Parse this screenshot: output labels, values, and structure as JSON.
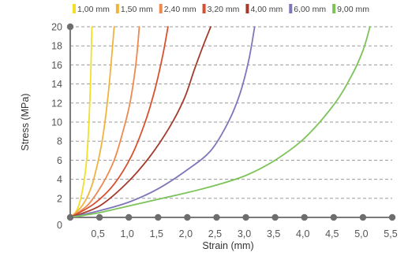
{
  "chart_data": {
    "type": "line",
    "title": "",
    "xlabel": "Strain (mm)",
    "ylabel": "Stress (MPa)",
    "xlim": [
      0,
      5.5
    ],
    "ylim": [
      0,
      20
    ],
    "x_ticks": [
      "0,5",
      "1,0",
      "1,5",
      "2,0",
      "2,5",
      "3,0",
      "3,5",
      "4,0",
      "4,5",
      "5,0",
      "5,5"
    ],
    "y_ticks": [
      "0",
      "2",
      "4",
      "6",
      "8",
      "10",
      "12",
      "14",
      "16",
      "18",
      "20"
    ],
    "grid": "horizontal-dashed",
    "legend_position": "top",
    "series": [
      {
        "name": "1,00 mm",
        "color": "#f2df2a",
        "points": [
          [
            0,
            0
          ],
          [
            0.1,
            0.6
          ],
          [
            0.18,
            2
          ],
          [
            0.24,
            4
          ],
          [
            0.28,
            6
          ],
          [
            0.32,
            10
          ],
          [
            0.35,
            15
          ],
          [
            0.37,
            20
          ]
        ]
      },
      {
        "name": "1,50 mm",
        "color": "#f0b43c",
        "points": [
          [
            0,
            0
          ],
          [
            0.2,
            1.2
          ],
          [
            0.35,
            3
          ],
          [
            0.48,
            6
          ],
          [
            0.57,
            9
          ],
          [
            0.65,
            13
          ],
          [
            0.71,
            17
          ],
          [
            0.75,
            20
          ]
        ]
      },
      {
        "name": "2,40 mm",
        "color": "#ee8a4e",
        "points": [
          [
            0,
            0
          ],
          [
            0.3,
            1.3
          ],
          [
            0.55,
            3.5
          ],
          [
            0.75,
            6
          ],
          [
            0.9,
            9
          ],
          [
            1.02,
            12
          ],
          [
            1.12,
            16
          ],
          [
            1.18,
            20
          ]
        ]
      },
      {
        "name": "3,20 mm",
        "color": "#d8502e",
        "points": [
          [
            0,
            0
          ],
          [
            0.4,
            1.4
          ],
          [
            0.75,
            3.5
          ],
          [
            1.05,
            6.5
          ],
          [
            1.28,
            10
          ],
          [
            1.45,
            13.5
          ],
          [
            1.58,
            17
          ],
          [
            1.67,
            20
          ]
        ]
      },
      {
        "name": "4,00 mm",
        "color": "#a33b2c",
        "points": [
          [
            0,
            0
          ],
          [
            0.5,
            1.2
          ],
          [
            0.95,
            3.5
          ],
          [
            1.35,
            6.3
          ],
          [
            1.7,
            9.5
          ],
          [
            1.95,
            12.5
          ],
          [
            2.12,
            15.5
          ],
          [
            2.27,
            18
          ],
          [
            2.4,
            20
          ]
        ]
      },
      {
        "name": "6,00 mm",
        "color": "#7c77bb",
        "points": [
          [
            0,
            0
          ],
          [
            0.5,
            0.7
          ],
          [
            1.0,
            1.6
          ],
          [
            1.5,
            3
          ],
          [
            2.0,
            5
          ],
          [
            2.4,
            7
          ],
          [
            2.7,
            10
          ],
          [
            2.9,
            13
          ],
          [
            3.05,
            16.5
          ],
          [
            3.15,
            20
          ]
        ]
      },
      {
        "name": "9,00 mm",
        "color": "#7cc35a",
        "points": [
          [
            0,
            0
          ],
          [
            0.5,
            0.5
          ],
          [
            1.0,
            1.2
          ],
          [
            1.5,
            1.9
          ],
          [
            2.0,
            2.6
          ],
          [
            2.5,
            3.4
          ],
          [
            3.0,
            4.4
          ],
          [
            3.5,
            6
          ],
          [
            4.0,
            8.3
          ],
          [
            4.5,
            11.8
          ],
          [
            4.8,
            14.8
          ],
          [
            5.0,
            17.5
          ],
          [
            5.12,
            20
          ]
        ]
      }
    ]
  }
}
